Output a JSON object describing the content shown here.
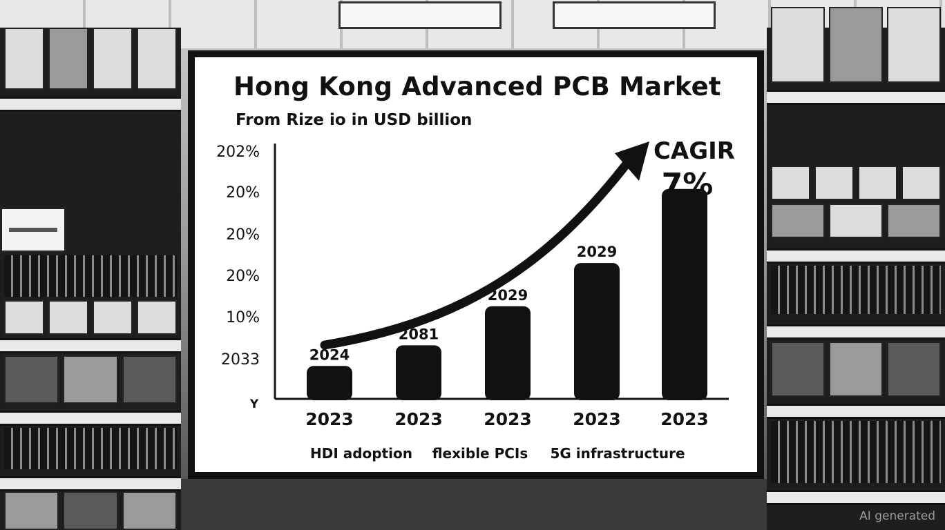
{
  "chart_data": {
    "type": "bar",
    "title": "Hong Kong Advanced PCB Market",
    "subtitle": "From Rize io in USD billion",
    "categories": [
      "2023",
      "2023",
      "2023",
      "2023",
      "2023"
    ],
    "values": [
      0.8,
      1.3,
      2.25,
      3.3,
      5.1
    ],
    "bar_labels": [
      "2024",
      "2081",
      "2029",
      "2029",
      ""
    ],
    "ylim": [
      0,
      6
    ],
    "y_tick_labels": [
      "2033",
      "10%",
      "20%",
      "20%",
      "20%",
      "202%"
    ],
    "y_axis_letter": "Y",
    "annotation": {
      "line1": "CAGIR",
      "line2": "7%"
    },
    "drivers": [
      "HDI adoption",
      "flexible PCIs",
      "5G infrastructure"
    ],
    "bar_color": "#111111",
    "grid": false,
    "trend_arrow": true
  },
  "watermark": "AI generated"
}
